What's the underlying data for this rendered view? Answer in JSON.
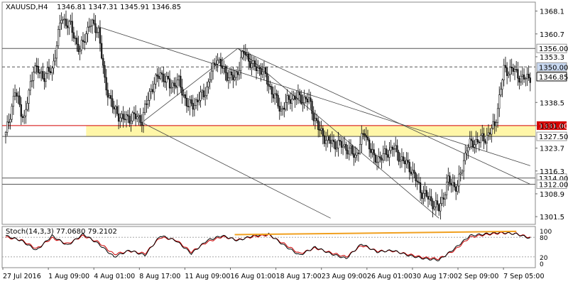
{
  "header": {
    "symbol_label": "XAUUSD,H4",
    "ohlc_text": "1346.81 1347.31 1345.91 1346.85"
  },
  "stoch": {
    "label": "Stoch(14,3,3) 77.0680 79.2102"
  },
  "colors": {
    "up_candle": "#ffffff",
    "down_candle": "#2b2b2b",
    "channel_line": "#444444",
    "support_zone": "#fff6a8",
    "red_level": "#d40000",
    "stoch_main": "#000000",
    "stoch_signal": "#cc0000",
    "trend_orange": "#f0a020"
  },
  "chart_data": {
    "type": "candlestick",
    "x_tick_labels": [
      "27 Jul 2016",
      "1 Aug 09:00",
      "4 Aug 01:00",
      "8 Aug 17:00",
      "11 Aug 09:00",
      "16 Aug 01:00",
      "18 Aug 17:00",
      "23 Aug 09:00",
      "26 Aug 01:00",
      "30 Aug 17:00",
      "2 Sep 09:00",
      "7 Sep 05:00"
    ],
    "y_tick_labels": [
      1368.1,
      1360.7,
      1353.3,
      1346.85,
      1338.5,
      1331.0,
      1323.7,
      1316.3,
      1308.9,
      1301.5
    ],
    "ylim": [
      1299.0,
      1371.0
    ],
    "levels": [
      {
        "value": 1356.0,
        "label": "1356.00",
        "style": "solid"
      },
      {
        "value": 1350.0,
        "label": "1350.00",
        "style": "dashed"
      },
      {
        "value": 1331.0,
        "label": "1331.00",
        "style": "red"
      },
      {
        "value": 1327.5,
        "label": "1327.50",
        "style": "solid"
      },
      {
        "value": 1314.0,
        "label": "1314.00",
        "style": "solid"
      },
      {
        "value": 1312.0,
        "label": "1312.00",
        "style": "solid"
      }
    ],
    "current_price": {
      "value": 1346.85,
      "label": "1346.85"
    },
    "support_zone": [
      1327.5,
      1331.0
    ],
    "close_path": [
      [
        0,
        1328
      ],
      [
        6,
        1342
      ],
      [
        12,
        1333
      ],
      [
        18,
        1350
      ],
      [
        24,
        1347
      ],
      [
        30,
        1349
      ],
      [
        36,
        1366
      ],
      [
        42,
        1363
      ],
      [
        48,
        1355
      ],
      [
        54,
        1364
      ],
      [
        60,
        1362
      ],
      [
        64,
        1345
      ],
      [
        70,
        1336
      ],
      [
        76,
        1333
      ],
      [
        82,
        1334
      ],
      [
        88,
        1333
      ],
      [
        94,
        1343
      ],
      [
        100,
        1348
      ],
      [
        106,
        1344
      ],
      [
        112,
        1345
      ],
      [
        118,
        1337
      ],
      [
        124,
        1339
      ],
      [
        130,
        1343
      ],
      [
        136,
        1353
      ],
      [
        142,
        1348
      ],
      [
        148,
        1346
      ],
      [
        154,
        1355
      ],
      [
        160,
        1350
      ],
      [
        166,
        1349
      ],
      [
        172,
        1342
      ],
      [
        178,
        1336
      ],
      [
        184,
        1340
      ],
      [
        190,
        1340
      ],
      [
        196,
        1339
      ],
      [
        202,
        1330
      ],
      [
        208,
        1326
      ],
      [
        214,
        1325
      ],
      [
        220,
        1324
      ],
      [
        226,
        1321
      ],
      [
        232,
        1329
      ],
      [
        238,
        1320
      ],
      [
        244,
        1321
      ],
      [
        250,
        1324
      ],
      [
        256,
        1320
      ],
      [
        262,
        1317
      ],
      [
        268,
        1310
      ],
      [
        274,
        1307
      ],
      [
        280,
        1304
      ],
      [
        286,
        1313
      ],
      [
        292,
        1311
      ],
      [
        298,
        1324
      ],
      [
        304,
        1326
      ],
      [
        310,
        1327
      ],
      [
        316,
        1331
      ],
      [
        322,
        1349
      ],
      [
        328,
        1349
      ],
      [
        334,
        1346
      ],
      [
        339,
        1347
      ]
    ],
    "stoch_ylim": [
      0,
      100
    ],
    "stoch_levels": [
      80,
      20
    ],
    "stoch_main": [
      [
        0,
        85
      ],
      [
        10,
        70
      ],
      [
        20,
        40
      ],
      [
        30,
        85
      ],
      [
        40,
        55
      ],
      [
        50,
        90
      ],
      [
        60,
        60
      ],
      [
        70,
        20
      ],
      [
        80,
        40
      ],
      [
        90,
        25
      ],
      [
        100,
        85
      ],
      [
        110,
        70
      ],
      [
        120,
        30
      ],
      [
        130,
        70
      ],
      [
        140,
        85
      ],
      [
        150,
        70
      ],
      [
        160,
        85
      ],
      [
        170,
        90
      ],
      [
        180,
        55
      ],
      [
        190,
        25
      ],
      [
        200,
        50
      ],
      [
        210,
        30
      ],
      [
        220,
        15
      ],
      [
        230,
        60
      ],
      [
        240,
        35
      ],
      [
        250,
        40
      ],
      [
        260,
        25
      ],
      [
        270,
        15
      ],
      [
        280,
        10
      ],
      [
        290,
        45
      ],
      [
        300,
        85
      ],
      [
        310,
        90
      ],
      [
        320,
        95
      ],
      [
        330,
        90
      ],
      [
        339,
        77
      ]
    ],
    "stoch_signal": [
      [
        0,
        80
      ],
      [
        10,
        72
      ],
      [
        20,
        45
      ],
      [
        30,
        78
      ],
      [
        40,
        60
      ],
      [
        50,
        85
      ],
      [
        60,
        65
      ],
      [
        70,
        28
      ],
      [
        80,
        38
      ],
      [
        90,
        30
      ],
      [
        100,
        80
      ],
      [
        110,
        72
      ],
      [
        120,
        35
      ],
      [
        130,
        65
      ],
      [
        140,
        82
      ],
      [
        150,
        72
      ],
      [
        160,
        82
      ],
      [
        170,
        87
      ],
      [
        180,
        60
      ],
      [
        190,
        30
      ],
      [
        200,
        47
      ],
      [
        210,
        33
      ],
      [
        220,
        20
      ],
      [
        230,
        55
      ],
      [
        240,
        38
      ],
      [
        250,
        38
      ],
      [
        260,
        28
      ],
      [
        270,
        18
      ],
      [
        280,
        14
      ],
      [
        290,
        40
      ],
      [
        300,
        80
      ],
      [
        310,
        88
      ],
      [
        320,
        93
      ],
      [
        330,
        91
      ],
      [
        339,
        79
      ]
    ],
    "stoch_right_labels": [
      "100",
      "80",
      "20",
      "0"
    ]
  }
}
